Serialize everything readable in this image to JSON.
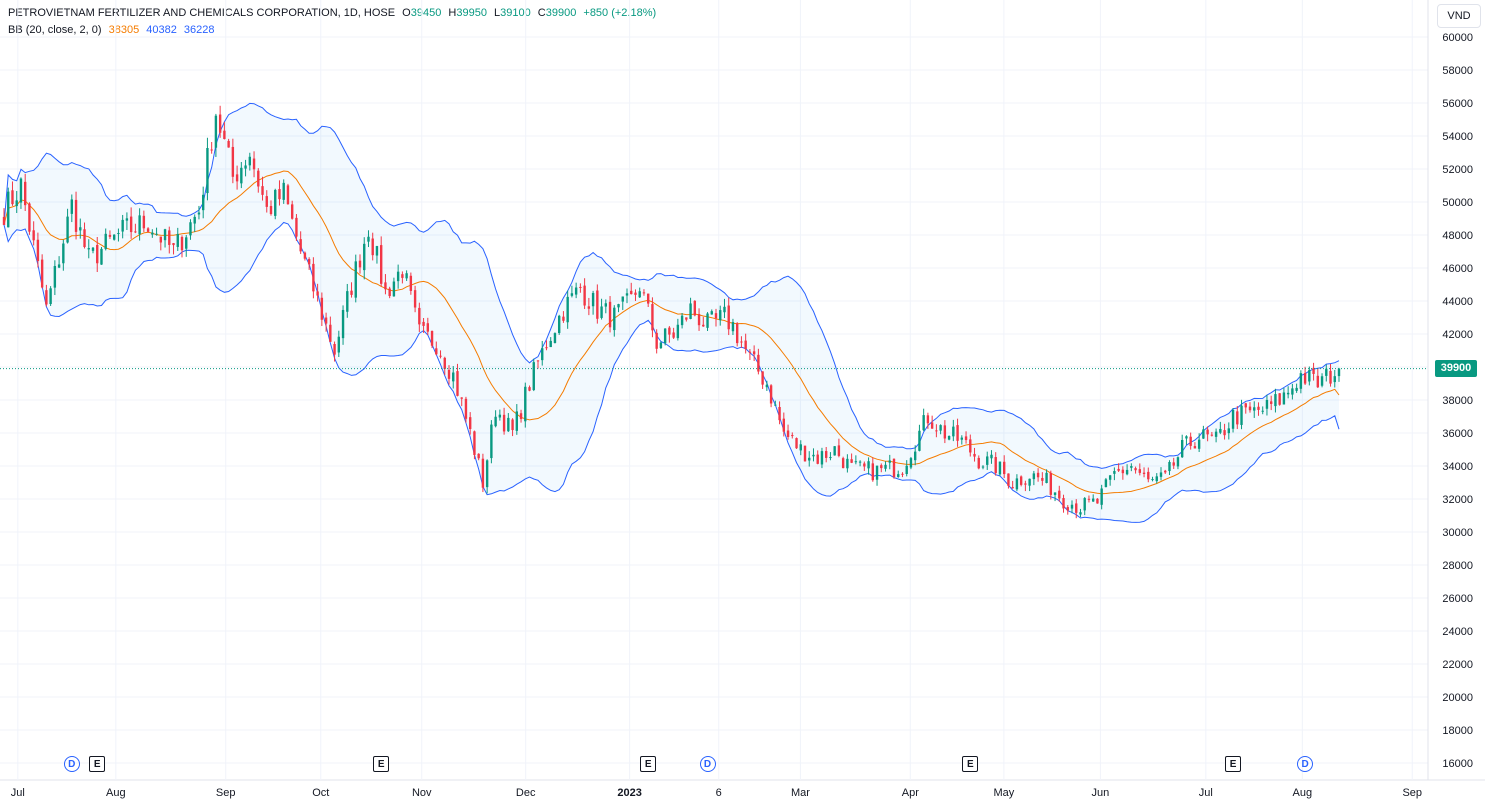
{
  "header": {
    "symbol": "PETROVIETNAM FERTILIZER AND CHEMICALS CORPORATION, 1D, HOSE",
    "open_label": "O",
    "open": "39450",
    "high_label": "H",
    "high": "39950",
    "low_label": "L",
    "low": "39100",
    "close_label": "C",
    "close": "39900",
    "change": "+850 (+2.18%)",
    "indicator": "BB (20, close, 2, 0)",
    "bb_basis": "38305",
    "bb_upper": "40382",
    "bb_lower": "36228"
  },
  "unit_button": "VND",
  "last_price_tag": "39900",
  "colors": {
    "up": "#089981",
    "down": "#f23645",
    "basis": "#f57c00",
    "band": "#2962ff",
    "band_fill": "rgba(33,150,243,0.06)",
    "last_price_line": "#089981",
    "grid": "#f0f3fa",
    "axis_text": "#131722"
  },
  "events": [
    {
      "type": "D",
      "label": "D",
      "icon": "dividend-icon",
      "after_index": 16
    },
    {
      "type": "E",
      "label": "E",
      "icon": "earnings-icon",
      "after_index": 22
    },
    {
      "type": "E",
      "label": "E",
      "icon": "earnings-icon",
      "after_index": 89
    },
    {
      "type": "E",
      "label": "E",
      "icon": "earnings-icon",
      "after_index": 152
    },
    {
      "type": "D",
      "label": "D",
      "icon": "dividend-icon",
      "after_index": 166
    },
    {
      "type": "E",
      "label": "E",
      "icon": "earnings-icon",
      "after_index": 228
    },
    {
      "type": "E",
      "label": "E",
      "icon": "earnings-icon",
      "after_index": 290
    },
    {
      "type": "D",
      "label": "D",
      "icon": "dividend-icon",
      "after_index": 307
    }
  ],
  "chart_data": {
    "type": "candlestick",
    "title": "PETROVIETNAM FERTILIZER AND CHEMICALS CORPORATION, 1D, HOSE",
    "ylabel": "VND",
    "ylim": [
      15000,
      61000
    ],
    "y_ticks": [
      16000,
      18000,
      20000,
      22000,
      24000,
      26000,
      28000,
      30000,
      32000,
      34000,
      36000,
      38000,
      40000,
      42000,
      44000,
      46000,
      48000,
      50000,
      52000,
      54000,
      56000,
      58000,
      60000
    ],
    "x_ticks": [
      {
        "label": "Jul",
        "pos": 0.012,
        "bold": false
      },
      {
        "label": "Aug",
        "pos": 0.078,
        "bold": false
      },
      {
        "label": "Sep",
        "pos": 0.152,
        "bold": false
      },
      {
        "label": "Oct",
        "pos": 0.216,
        "bold": false
      },
      {
        "label": "Nov",
        "pos": 0.284,
        "bold": false
      },
      {
        "label": "Dec",
        "pos": 0.354,
        "bold": false
      },
      {
        "label": "2023",
        "pos": 0.424,
        "bold": true
      },
      {
        "label": "6",
        "pos": 0.484,
        "bold": false
      },
      {
        "label": "Mar",
        "pos": 0.539,
        "bold": false
      },
      {
        "label": "Apr",
        "pos": 0.613,
        "bold": false
      },
      {
        "label": "May",
        "pos": 0.676,
        "bold": false
      },
      {
        "label": "Jun",
        "pos": 0.741,
        "bold": false
      },
      {
        "label": "Jul",
        "pos": 0.812,
        "bold": false
      },
      {
        "label": "Aug",
        "pos": 0.877,
        "bold": false
      },
      {
        "label": "Sep",
        "pos": 0.951,
        "bold": false
      }
    ],
    "last_close": 39900,
    "bollinger": {
      "length": 20,
      "source": "close",
      "mult": 2,
      "offset": 0,
      "basis": 38305,
      "upper": 40382,
      "lower": 36228
    },
    "close_path": [
      {
        "i": 0,
        "v": 49500
      },
      {
        "i": 4,
        "v": 51000
      },
      {
        "i": 10,
        "v": 43500
      },
      {
        "i": 16,
        "v": 49800
      },
      {
        "i": 20,
        "v": 46500
      },
      {
        "i": 28,
        "v": 48200
      },
      {
        "i": 34,
        "v": 48800
      },
      {
        "i": 40,
        "v": 47000
      },
      {
        "i": 46,
        "v": 49500
      },
      {
        "i": 50,
        "v": 55500
      },
      {
        "i": 54,
        "v": 51500
      },
      {
        "i": 58,
        "v": 53000
      },
      {
        "i": 62,
        "v": 49500
      },
      {
        "i": 66,
        "v": 50500
      },
      {
        "i": 70,
        "v": 47000
      },
      {
        "i": 74,
        "v": 44000
      },
      {
        "i": 78,
        "v": 41000
      },
      {
        "i": 82,
        "v": 45000
      },
      {
        "i": 86,
        "v": 48500
      },
      {
        "i": 90,
        "v": 44500
      },
      {
        "i": 94,
        "v": 46000
      },
      {
        "i": 98,
        "v": 42000
      },
      {
        "i": 102,
        "v": 41500
      },
      {
        "i": 106,
        "v": 39500
      },
      {
        "i": 110,
        "v": 36000
      },
      {
        "i": 113,
        "v": 33000
      },
      {
        "i": 116,
        "v": 37500
      },
      {
        "i": 120,
        "v": 36000
      },
      {
        "i": 124,
        "v": 39000
      },
      {
        "i": 128,
        "v": 41500
      },
      {
        "i": 132,
        "v": 43500
      },
      {
        "i": 136,
        "v": 44800
      },
      {
        "i": 140,
        "v": 43500
      },
      {
        "i": 144,
        "v": 43000
      },
      {
        "i": 148,
        "v": 44000
      },
      {
        "i": 150,
        "v": 45000
      },
      {
        "i": 154,
        "v": 41500
      },
      {
        "i": 158,
        "v": 42000
      },
      {
        "i": 162,
        "v": 43500
      },
      {
        "i": 166,
        "v": 42500
      },
      {
        "i": 170,
        "v": 43000
      },
      {
        "i": 172,
        "v": 42500
      },
      {
        "i": 176,
        "v": 40500
      },
      {
        "i": 180,
        "v": 39000
      },
      {
        "i": 184,
        "v": 36000
      },
      {
        "i": 188,
        "v": 35000
      },
      {
        "i": 192,
        "v": 34500
      },
      {
        "i": 196,
        "v": 35000
      },
      {
        "i": 200,
        "v": 33800
      },
      {
        "i": 206,
        "v": 33700
      },
      {
        "i": 212,
        "v": 34000
      },
      {
        "i": 215,
        "v": 35500
      },
      {
        "i": 218,
        "v": 37000
      },
      {
        "i": 222,
        "v": 36000
      },
      {
        "i": 226,
        "v": 35500
      },
      {
        "i": 230,
        "v": 34400
      },
      {
        "i": 234,
        "v": 34000
      },
      {
        "i": 238,
        "v": 33000
      },
      {
        "i": 242,
        "v": 33500
      },
      {
        "i": 246,
        "v": 33000
      },
      {
        "i": 250,
        "v": 32000
      },
      {
        "i": 254,
        "v": 31500
      },
      {
        "i": 258,
        "v": 31800
      },
      {
        "i": 262,
        "v": 33500
      },
      {
        "i": 266,
        "v": 34000
      },
      {
        "i": 270,
        "v": 33000
      },
      {
        "i": 274,
        "v": 33200
      },
      {
        "i": 278,
        "v": 35000
      },
      {
        "i": 282,
        "v": 35800
      },
      {
        "i": 286,
        "v": 35500
      },
      {
        "i": 290,
        "v": 37000
      },
      {
        "i": 294,
        "v": 37200
      },
      {
        "i": 298,
        "v": 37500
      },
      {
        "i": 302,
        "v": 38200
      },
      {
        "i": 306,
        "v": 39500
      },
      {
        "i": 310,
        "v": 39000
      },
      {
        "i": 315,
        "v": 39900
      }
    ]
  }
}
